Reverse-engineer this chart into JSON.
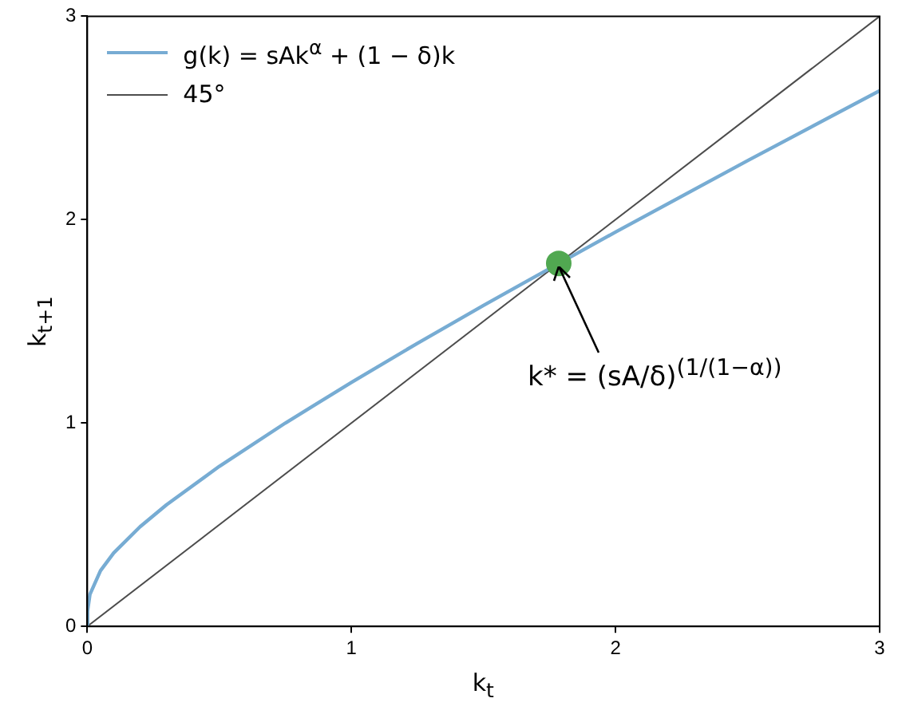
{
  "chart_data": {
    "type": "line",
    "xlabel": "k$_{t}$",
    "ylabel": "k$_{t+1}$",
    "xlim": [
      0,
      3
    ],
    "ylim": [
      0,
      3
    ],
    "xticks": [
      0,
      1,
      2,
      3
    ],
    "yticks": [
      0,
      1,
      2,
      3
    ],
    "grid": false,
    "legend": "top left",
    "marker": "none",
    "line_style": "solid",
    "series": [
      {
        "name": "g(k) = sAk$^{α}$ + (1 − δ)k",
        "color": "#77acd3",
        "x": [
          0,
          0.001,
          0.01,
          0.05,
          0.1,
          0.2,
          0.3,
          0.5,
          0.75,
          1,
          1.25,
          1.5,
          1.65,
          2,
          2.5,
          3
        ],
        "values": [
          0,
          0.076,
          0.157,
          0.274,
          0.361,
          0.49,
          0.598,
          0.787,
          1.0,
          1.2,
          1.392,
          1.578,
          1.687,
          1.939,
          2.29,
          2.634
        ]
      },
      {
        "name": "45°",
        "color": "#4d4d4d",
        "x": [
          0,
          3
        ],
        "values": [
          0,
          3
        ]
      },
      {
        "type": "scatter",
        "marker": "circle",
        "color": "#51a851",
        "x": [
          1.785
        ],
        "values": [
          1.785
        ]
      }
    ],
    "annotations": [
      {
        "text": "k* = (sA/δ)$^{(1/(1−α))}$",
        "x": 1.785,
        "y": 1.785
      }
    ]
  }
}
